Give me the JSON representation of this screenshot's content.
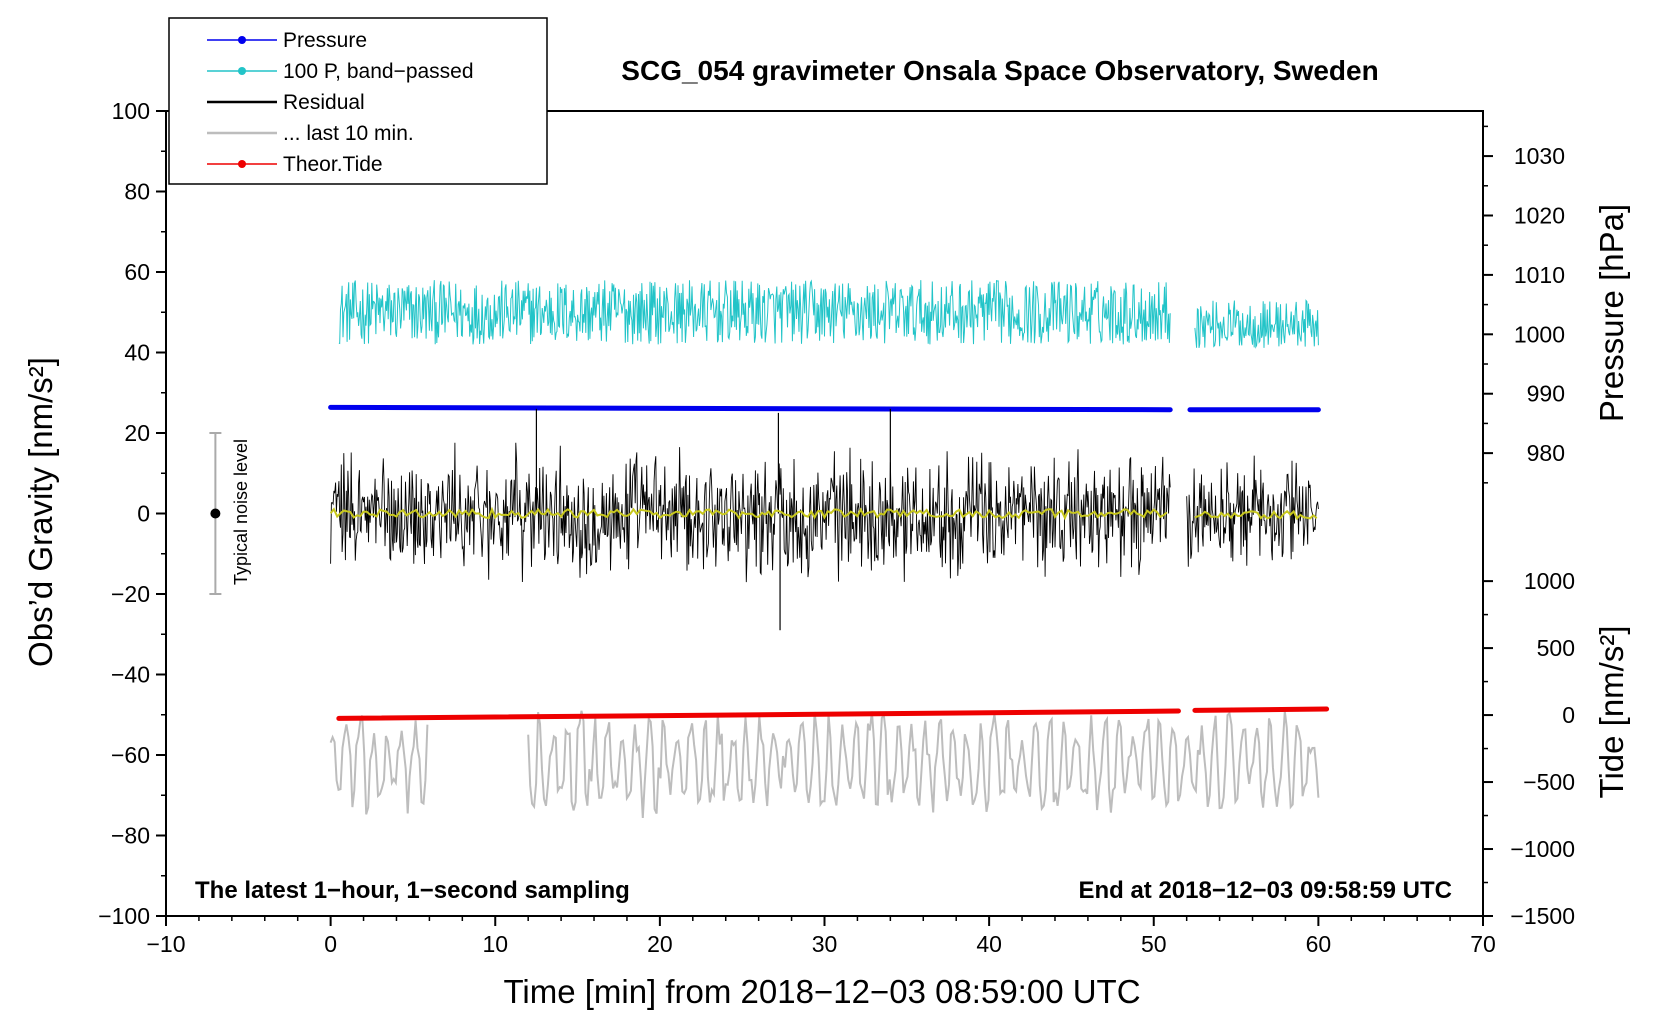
{
  "chart_data": {
    "type": "line",
    "title": "SCG_054 gravimeter Onsala Space Observatory, Sweden",
    "xlabel": "Time [min] from 2018−12−03 08:59:00 UTC",
    "ylabel_left": "Obs’d Gravity [nm/s²]",
    "ylabel_right_upper": "Pressure [hPa]",
    "ylabel_right_lower": "Tide [nm/s²]",
    "footer_left": "The latest 1−hour, 1−second sampling",
    "footer_right": "End at 2018−12−03 09:58:59 UTC",
    "noise_label": "Typical noise level",
    "xlim": [
      -10,
      70
    ],
    "ylim": [
      -100,
      100
    ],
    "x_ticks": [
      {
        "v": -10,
        "label": "−10"
      },
      {
        "v": 0,
        "label": "0"
      },
      {
        "v": 10,
        "label": "10"
      },
      {
        "v": 20,
        "label": "20"
      },
      {
        "v": 30,
        "label": "30"
      },
      {
        "v": 40,
        "label": "40"
      },
      {
        "v": 50,
        "label": "50"
      },
      {
        "v": 60,
        "label": "60"
      },
      {
        "v": 70,
        "label": "70"
      }
    ],
    "y_ticks": [
      {
        "v": 100,
        "label": "100"
      },
      {
        "v": 80,
        "label": "80"
      },
      {
        "v": 60,
        "label": "60"
      },
      {
        "v": 40,
        "label": "40"
      },
      {
        "v": 20,
        "label": "20"
      },
      {
        "v": 0,
        "label": "0"
      },
      {
        "v": -20,
        "label": "−20"
      },
      {
        "v": -40,
        "label": "−40"
      },
      {
        "v": -60,
        "label": "−60"
      },
      {
        "v": -80,
        "label": "−80"
      },
      {
        "v": -100,
        "label": "−100"
      }
    ],
    "pressure_axis": {
      "ticks": [
        {
          "v": 1030,
          "label": "1030"
        },
        {
          "v": 1020,
          "label": "1020"
        },
        {
          "v": 1010,
          "label": "1010"
        },
        {
          "v": 1000,
          "label": "1000"
        },
        {
          "v": 990,
          "label": "990"
        },
        {
          "v": 980,
          "label": "980"
        }
      ],
      "anchor_a": {
        "hpa": 1030,
        "gravity": 88.8
      },
      "anchor_b": {
        "hpa": 980,
        "gravity": 15.0
      }
    },
    "tide_axis": {
      "ticks": [
        {
          "v": 1000,
          "label": "1000"
        },
        {
          "v": 500,
          "label": "500"
        },
        {
          "v": 0,
          "label": "0"
        },
        {
          "v": -500,
          "label": "−500"
        },
        {
          "v": -1000,
          "label": "−1000"
        },
        {
          "v": -1500,
          "label": "−1500"
        }
      ],
      "anchor_a": {
        "tide": 1000,
        "gravity": -16.8
      },
      "anchor_b": {
        "tide": -1500,
        "gravity": -100
      }
    },
    "legend": [
      {
        "label": "Pressure",
        "color": "#0000ee",
        "marker": "dot"
      },
      {
        "label": "100 P, band−passed",
        "color": "#22c4c8",
        "marker": "dot"
      },
      {
        "label": "Residual",
        "color": "#000000",
        "marker": "line"
      },
      {
        "label": "... last 10 min.",
        "color": "#bdbdbd",
        "marker": "line"
      },
      {
        "label": "Theor.Tide",
        "color": "#ee0000",
        "marker": "dot"
      }
    ],
    "noise_bar": {
      "x": -7,
      "center": 0,
      "low": -20,
      "high": 20
    },
    "series": [
      {
        "name": "Pressure",
        "color": "#0000ee",
        "unit": "hPa",
        "segments": [
          {
            "x": [
              0,
              51
            ],
            "hpa": [
              987.7,
              987.3
            ]
          },
          {
            "x": [
              52.2,
              60
            ],
            "hpa": [
              987.3,
              987.3
            ]
          }
        ]
      },
      {
        "name": "100 P, band−passed",
        "color": "#22c4c8",
        "unit": "nm/s²",
        "segments": [
          {
            "x": [
              0.5,
              51
            ],
            "mean": 50,
            "amplitude": 8
          },
          {
            "x": [
              52.5,
              60
            ],
            "mean": 47,
            "amplitude": 6
          }
        ]
      },
      {
        "name": "Residual",
        "color": "#000000",
        "unit": "nm/s²",
        "segments": [
          {
            "x": [
              0,
              51
            ],
            "mean": 0,
            "amplitude": 18
          },
          {
            "x": [
              52,
              60
            ],
            "mean": 0,
            "amplitude": 16
          }
        ],
        "spikes": [
          {
            "x": 12.5,
            "y": 26
          },
          {
            "x": 27.3,
            "y": -29
          },
          {
            "x": 27.2,
            "y": 25
          },
          {
            "x": 34,
            "y": 26
          }
        ]
      },
      {
        "name": "Residual smoothed",
        "color": "#c8c81e",
        "unit": "nm/s²",
        "segments": [
          {
            "x": [
              0,
              51
            ],
            "mean": 0
          },
          {
            "x": [
              52.5,
              60
            ],
            "mean": -0.5
          }
        ]
      },
      {
        "name": "... last 10 min.",
        "color": "#bdbdbd",
        "unit": "nm/s²",
        "segments": [
          {
            "x": [
              0,
              6
            ],
            "mean": -62,
            "amplitude": 12
          },
          {
            "x": [
              12,
              60
            ],
            "mean": -62,
            "amplitude": 12
          }
        ]
      },
      {
        "name": "Theor.Tide",
        "color": "#ee0000",
        "unit": "nm/s²",
        "segments": [
          {
            "x": [
              0.5,
              51.5
            ],
            "tide": [
              -25,
              30
            ]
          },
          {
            "x": [
              52.5,
              60.5
            ],
            "tide": [
              35,
              45
            ]
          }
        ]
      }
    ]
  }
}
